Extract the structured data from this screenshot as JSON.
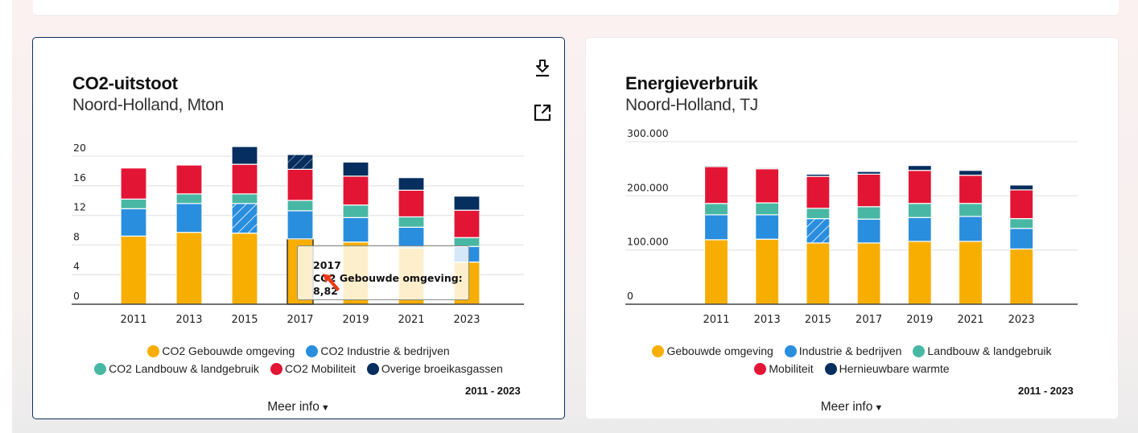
{
  "colors": {
    "gebouwd": "#f8ae00",
    "industrie": "#2a8ede",
    "landbouw": "#48b8a4",
    "mobiliteit": "#e31535",
    "overig": "#062e5e",
    "card_border_active": "#0b2e5a"
  },
  "left_card": {
    "title": "CO2-uitstoot",
    "subtitle": "Noord-Holland, Mton",
    "download_icon": "download-icon",
    "external_link_icon": "external-link-icon",
    "period": "2011 - 2023",
    "more_info": "Meer info",
    "more_info_icon": "caret-down-icon",
    "tooltip": {
      "year": "2017",
      "line": "CO2 Gebouwde omgeving: 8,82"
    }
  },
  "right_card": {
    "title": "Energieverbruik",
    "subtitle": "Noord-Holland, TJ",
    "period": "2011 - 2023",
    "more_info": "Meer info",
    "more_info_icon": "caret-down-icon"
  },
  "chart_data": [
    {
      "type": "bar",
      "stacked": true,
      "title": "CO2-uitstoot",
      "subtitle": "Noord-Holland, Mton",
      "xlabel": "",
      "ylabel": "Mton",
      "categories": [
        "2011",
        "2013",
        "2015",
        "2017",
        "2019",
        "2021",
        "2023"
      ],
      "ylim": [
        0,
        20
      ],
      "yticks": [
        0,
        4,
        8,
        12,
        16,
        20
      ],
      "ytick_labels": [
        "0",
        "4",
        "8",
        "12",
        "16",
        "20"
      ],
      "grid": true,
      "legend_position": "bottom",
      "series": [
        {
          "name": "CO2 Gebouwde omgeving",
          "color_key": "gebouwd",
          "values": [
            9.2,
            9.7,
            9.6,
            8.82,
            8.4,
            7.6,
            5.7
          ]
        },
        {
          "name": "CO2 Industrie & bedrijven",
          "color_key": "industrie",
          "values": [
            3.7,
            3.9,
            4.0,
            3.8,
            3.3,
            2.8,
            2.1
          ]
        },
        {
          "name": "CO2 Landbouw & landgebruik",
          "color_key": "landbouw",
          "values": [
            1.3,
            1.3,
            1.3,
            1.4,
            1.7,
            1.4,
            1.2
          ]
        },
        {
          "name": "CO2 Mobiliteit",
          "color_key": "mobiliteit",
          "values": [
            4.2,
            3.9,
            4.0,
            4.2,
            3.9,
            3.6,
            3.7
          ]
        },
        {
          "name": "Overige broeikasgassen",
          "color_key": "overig",
          "values": [
            0,
            0,
            2.4,
            2.0,
            1.9,
            1.7,
            1.9
          ]
        }
      ],
      "hatched": [
        {
          "series": 1,
          "category": "2015"
        },
        {
          "series": 4,
          "category": "2017"
        }
      ],
      "highlighted": {
        "series": 0,
        "category": "2017"
      },
      "dimmed_by_tooltip": true,
      "period": "2011 - 2023"
    },
    {
      "type": "bar",
      "stacked": true,
      "title": "Energieverbruik",
      "subtitle": "Noord-Holland, TJ",
      "xlabel": "",
      "ylabel": "TJ",
      "categories": [
        "2011",
        "2013",
        "2015",
        "2017",
        "2019",
        "2021",
        "2023"
      ],
      "ylim": [
        0,
        300000
      ],
      "yticks": [
        0,
        100000,
        200000,
        300000
      ],
      "ytick_labels": [
        "0",
        "100.000",
        "200.000",
        "300.000"
      ],
      "grid": true,
      "legend_position": "bottom",
      "series": [
        {
          "name": "Gebouwde omgeving",
          "color_key": "gebouwd",
          "values": [
            119000,
            120000,
            113000,
            113000,
            116000,
            116000,
            102000
          ]
        },
        {
          "name": "Industrie & bedrijven",
          "color_key": "industrie",
          "values": [
            46000,
            45000,
            45000,
            44000,
            44000,
            46000,
            38000
          ]
        },
        {
          "name": "Landbouw & landgebruik",
          "color_key": "landbouw",
          "values": [
            21000,
            22000,
            19000,
            23000,
            26000,
            24000,
            18000
          ]
        },
        {
          "name": "Mobiliteit",
          "color_key": "mobiliteit",
          "values": [
            68000,
            63000,
            59000,
            60000,
            61000,
            52000,
            53000
          ]
        },
        {
          "name": "Hernieuwbare warmte",
          "color_key": "overig",
          "values": [
            2000,
            2000,
            4000,
            5000,
            9000,
            9000,
            9000
          ]
        }
      ],
      "hatched": [
        {
          "series": 1,
          "category": "2015"
        }
      ],
      "period": "2011 - 2023"
    }
  ]
}
